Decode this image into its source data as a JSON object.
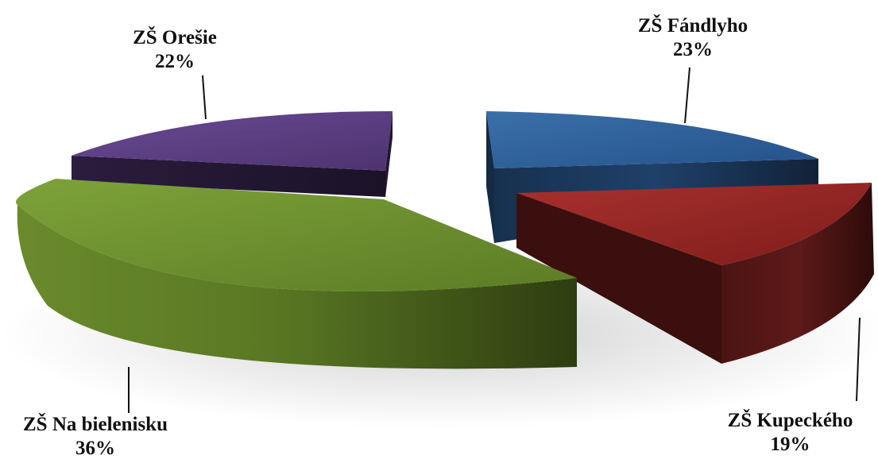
{
  "chart_data": {
    "type": "pie",
    "style": "3d-exploded",
    "title": "",
    "slices": [
      {
        "label": "ZŠ Fándlyho",
        "value": 23,
        "display": "23%",
        "color": "#2a5d94"
      },
      {
        "label": "ZŠ Kupeckého",
        "value": 19,
        "display": "19%",
        "color": "#8f2422"
      },
      {
        "label": "ZŠ Na bielenisku",
        "value": 36,
        "display": "36%",
        "color": "#6d8f2c"
      },
      {
        "label": "ZŠ Orešie",
        "value": 22,
        "display": "22%",
        "color": "#5b3d82"
      }
    ]
  }
}
